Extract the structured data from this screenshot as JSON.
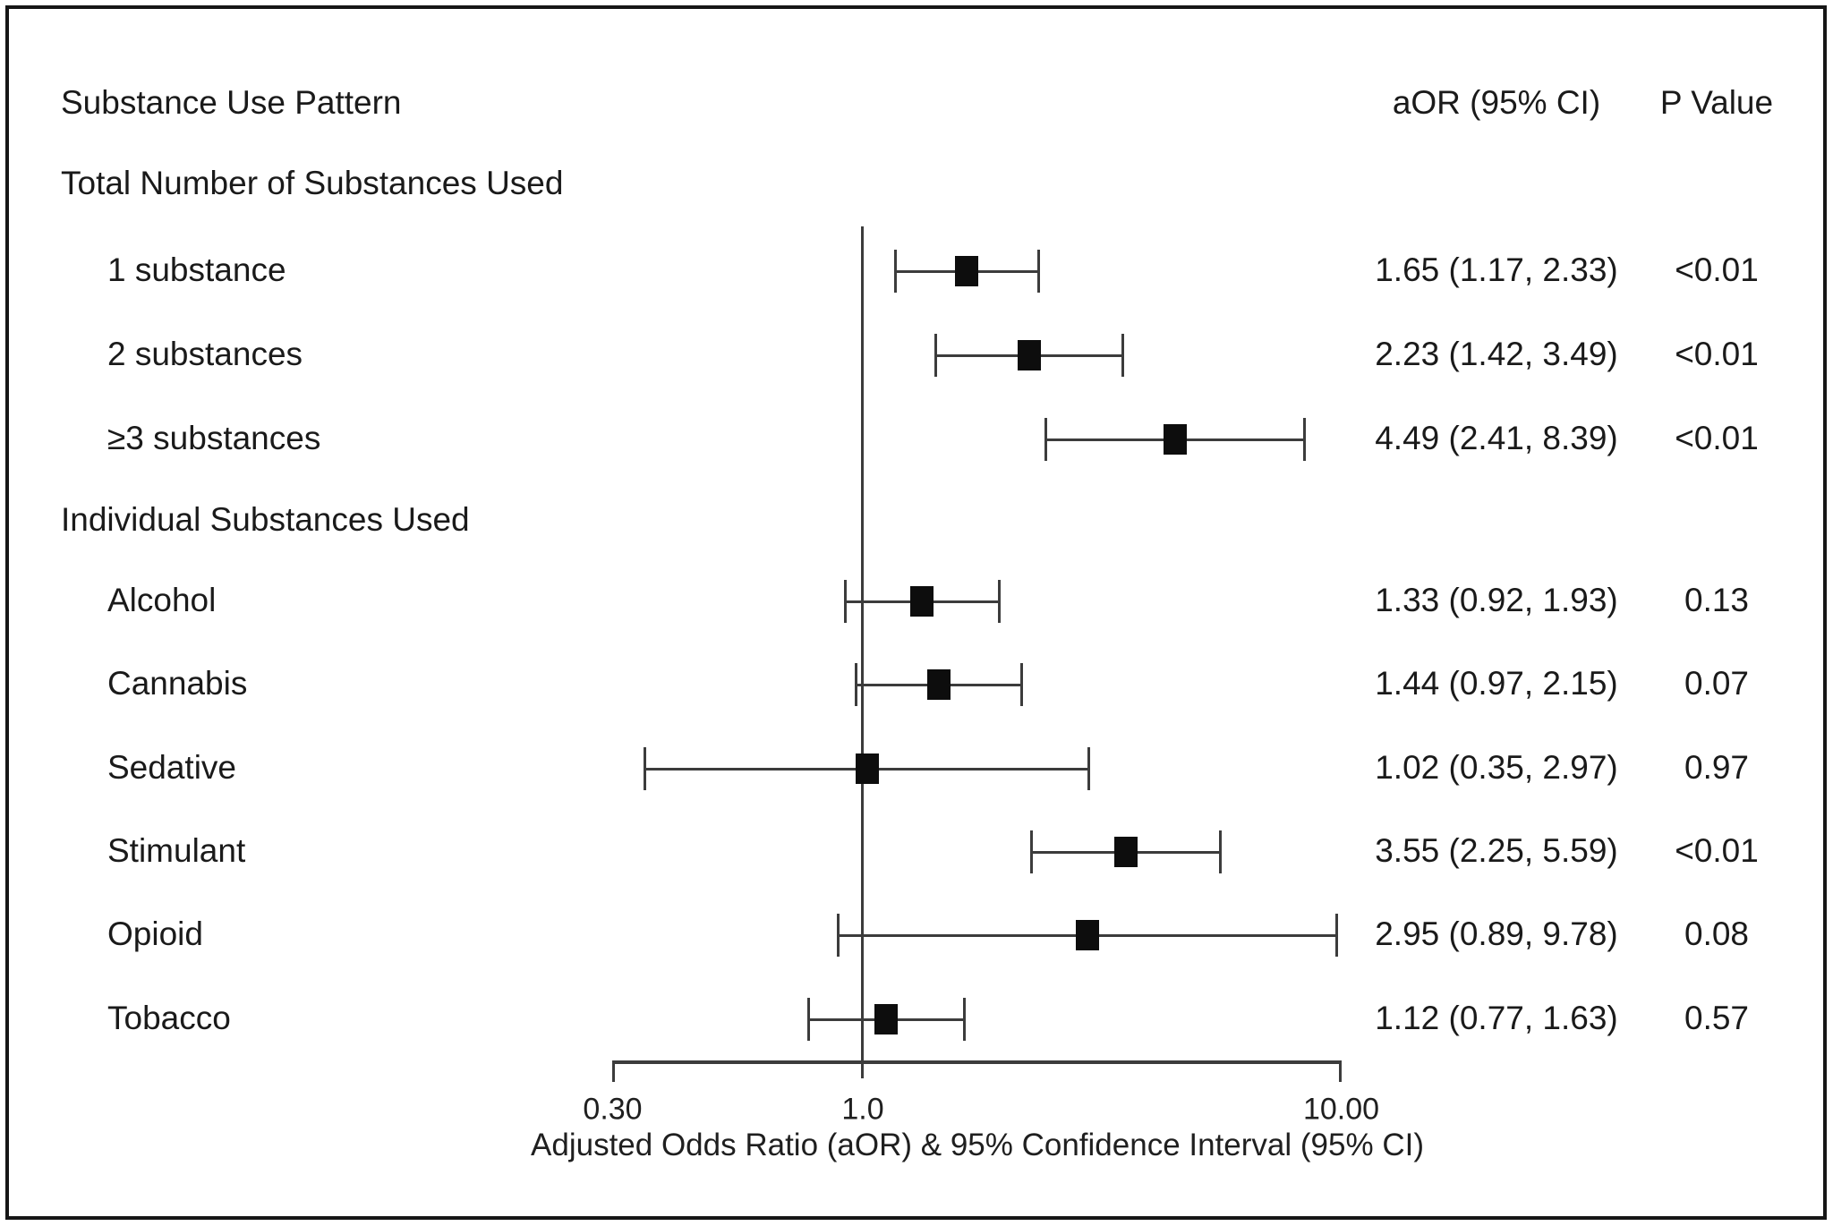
{
  "columns": {
    "substance": "Substance Use Pattern",
    "aor": "aOR (95% CI)",
    "p": "P Value"
  },
  "chart_data": {
    "type": "forest",
    "x_axis": {
      "scale": "log",
      "range": [
        0.3,
        10.0
      ],
      "reference_line": 1.0,
      "ticks": [
        {
          "value": 0.3,
          "label": "0.30"
        },
        {
          "value": 1.0,
          "label": "1.0"
        },
        {
          "value": 10.0,
          "label": "10.00"
        }
      ],
      "label": "Adjusted Odds Ratio (aOR) & 95% Confidence Interval (95% CI)"
    },
    "groups": [
      {
        "heading": "Total Number of Substances Used",
        "rows": [
          {
            "label": "1 substance",
            "aor": 1.65,
            "ci_low": 1.17,
            "ci_high": 2.33,
            "aor_text": "1.65 (1.17, 2.33)",
            "p": "<0.01"
          },
          {
            "label": "2 substances",
            "aor": 2.23,
            "ci_low": 1.42,
            "ci_high": 3.49,
            "aor_text": "2.23 (1.42, 3.49)",
            "p": "<0.01"
          },
          {
            "label": "≥3 substances",
            "aor": 4.49,
            "ci_low": 2.41,
            "ci_high": 8.39,
            "aor_text": "4.49 (2.41, 8.39)",
            "p": "<0.01"
          }
        ]
      },
      {
        "heading": "Individual Substances Used",
        "rows": [
          {
            "label": "Alcohol",
            "aor": 1.33,
            "ci_low": 0.92,
            "ci_high": 1.93,
            "aor_text": "1.33 (0.92, 1.93)",
            "p": "0.13"
          },
          {
            "label": "Cannabis",
            "aor": 1.44,
            "ci_low": 0.97,
            "ci_high": 2.15,
            "aor_text": "1.44 (0.97, 2.15)",
            "p": "0.07"
          },
          {
            "label": "Sedative",
            "aor": 1.02,
            "ci_low": 0.35,
            "ci_high": 2.97,
            "aor_text": "1.02 (0.35, 2.97)",
            "p": "0.97"
          },
          {
            "label": "Stimulant",
            "aor": 3.55,
            "ci_low": 2.25,
            "ci_high": 5.59,
            "aor_text": "3.55 (2.25, 5.59)",
            "p": "<0.01"
          },
          {
            "label": "Opioid",
            "aor": 2.95,
            "ci_low": 0.89,
            "ci_high": 9.78,
            "aor_text": "2.95 (0.89, 9.78)",
            "p": "0.08"
          },
          {
            "label": "Tobacco",
            "aor": 1.12,
            "ci_low": 0.77,
            "ci_high": 1.63,
            "aor_text": "1.12 (0.77, 1.63)",
            "p": "0.57"
          }
        ]
      }
    ]
  }
}
